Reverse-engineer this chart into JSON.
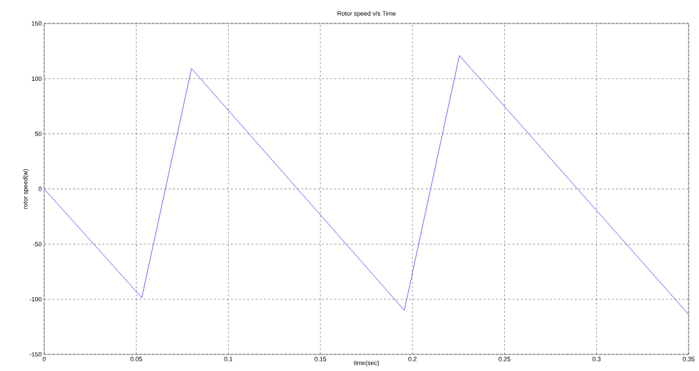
{
  "chart_data": {
    "type": "line",
    "title": "Rotor speed v/s Time",
    "xlabel": "time(sec)",
    "ylabel": "rotor speed(w)",
    "x": [
      0,
      0.053,
      0.08,
      0.1956,
      0.2255,
      0.35
    ],
    "series": [
      {
        "color": "#0000ff",
        "values": [
          0,
          -98.6,
          109.2,
          -110,
          121,
          -113.8
        ]
      }
    ],
    "xlim": [
      0,
      0.35
    ],
    "xticks": [
      0,
      0.05,
      0.1,
      0.15,
      0.2,
      0.25,
      0.3,
      0.35
    ],
    "ylim": [
      -150,
      150
    ],
    "yticks": [
      -150,
      -100,
      -50,
      0,
      50,
      100,
      150
    ],
    "grid": true
  }
}
